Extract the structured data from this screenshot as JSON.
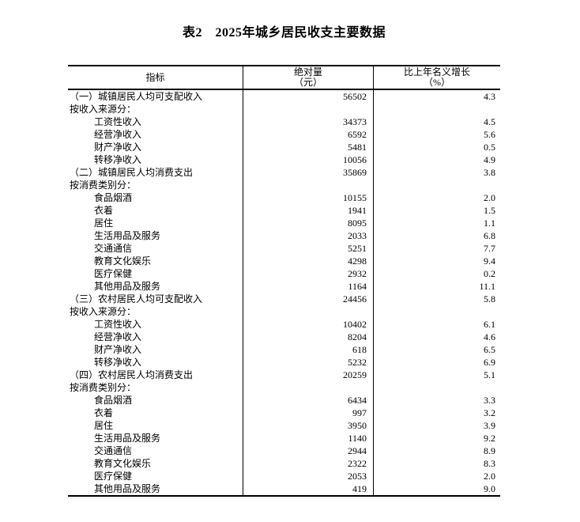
{
  "title": "表2　2025年城乡居民收支主要数据",
  "table": {
    "columns": [
      {
        "label": "指标",
        "sublabel": ""
      },
      {
        "label": "绝对量",
        "sublabel": "（元）"
      },
      {
        "label": "比上年名义增长",
        "sublabel": "（%）"
      }
    ],
    "rows": [
      {
        "label": "（一）城镇居民人均可支配收入",
        "indent": 0,
        "value": "56502",
        "growth": "4.3"
      },
      {
        "label": "按收入来源分：",
        "indent": 0,
        "value": "",
        "growth": ""
      },
      {
        "label": "工资性收入",
        "indent": 1,
        "value": "34373",
        "growth": "4.5"
      },
      {
        "label": "经营净收入",
        "indent": 1,
        "value": "6592",
        "growth": "5.6"
      },
      {
        "label": "财产净收入",
        "indent": 1,
        "value": "5481",
        "growth": "0.5"
      },
      {
        "label": "转移净收入",
        "indent": 1,
        "value": "10056",
        "growth": "4.9"
      },
      {
        "label": "（二）城镇居民人均消费支出",
        "indent": 0,
        "value": "35869",
        "growth": "3.8"
      },
      {
        "label": "按消费类别分：",
        "indent": 0,
        "value": "",
        "growth": ""
      },
      {
        "label": "食品烟酒",
        "indent": 1,
        "value": "10155",
        "growth": "2.0"
      },
      {
        "label": "衣着",
        "indent": 1,
        "value": "1941",
        "growth": "1.5"
      },
      {
        "label": "居住",
        "indent": 1,
        "value": "8095",
        "growth": "1.1"
      },
      {
        "label": "生活用品及服务",
        "indent": 1,
        "value": "2033",
        "growth": "6.8"
      },
      {
        "label": "交通通信",
        "indent": 1,
        "value": "5251",
        "growth": "7.7"
      },
      {
        "label": "教育文化娱乐",
        "indent": 1,
        "value": "4298",
        "growth": "9.4"
      },
      {
        "label": "医疗保健",
        "indent": 1,
        "value": "2932",
        "growth": "0.2"
      },
      {
        "label": "其他用品及服务",
        "indent": 1,
        "value": "1164",
        "growth": "11.1"
      },
      {
        "label": "（三）农村居民人均可支配收入",
        "indent": 0,
        "value": "24456",
        "growth": "5.8"
      },
      {
        "label": "按收入来源分：",
        "indent": 0,
        "value": "",
        "growth": ""
      },
      {
        "label": "工资性收入",
        "indent": 1,
        "value": "10402",
        "growth": "6.1"
      },
      {
        "label": "经营净收入",
        "indent": 1,
        "value": "8204",
        "growth": "4.6"
      },
      {
        "label": "财产净收入",
        "indent": 1,
        "value": "618",
        "growth": "6.5"
      },
      {
        "label": "转移净收入",
        "indent": 1,
        "value": "5232",
        "growth": "6.9"
      },
      {
        "label": "（四）农村居民人均消费支出",
        "indent": 0,
        "value": "20259",
        "growth": "5.1"
      },
      {
        "label": "按消费类别分：",
        "indent": 0,
        "value": "",
        "growth": ""
      },
      {
        "label": "食品烟酒",
        "indent": 1,
        "value": "6434",
        "growth": "3.3"
      },
      {
        "label": "衣着",
        "indent": 1,
        "value": "997",
        "growth": "3.2"
      },
      {
        "label": "居住",
        "indent": 1,
        "value": "3950",
        "growth": "3.9"
      },
      {
        "label": "生活用品及服务",
        "indent": 1,
        "value": "1140",
        "growth": "9.2"
      },
      {
        "label": "交通通信",
        "indent": 1,
        "value": "2944",
        "growth": "8.9"
      },
      {
        "label": "教育文化娱乐",
        "indent": 1,
        "value": "2322",
        "growth": "8.3"
      },
      {
        "label": "医疗保健",
        "indent": 1,
        "value": "2053",
        "growth": "2.0"
      },
      {
        "label": "其他用品及服务",
        "indent": 1,
        "value": "419",
        "growth": "9.0"
      }
    ]
  }
}
